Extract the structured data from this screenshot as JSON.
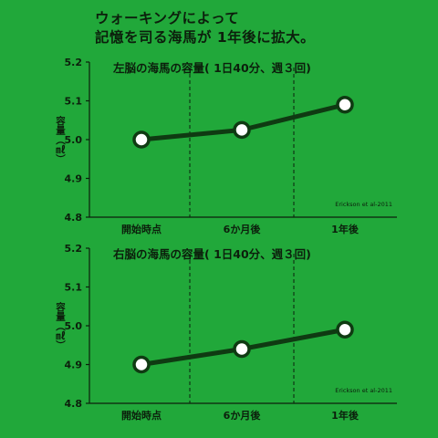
{
  "headline": {
    "line1": "ウォーキングによって",
    "line2": "記憶を司る海馬が 1年後に拡大。"
  },
  "colors": {
    "background": "#21a83a",
    "ink": "#0c1f0c",
    "line": "#0f3a12",
    "marker_fill": "#ffffff"
  },
  "chart_data": [
    {
      "type": "line",
      "title": "左脳の海馬の容量( 1日40分、週３回)",
      "ylabel": "容量（㎖）",
      "categories": [
        "開始時点",
        "6か月後",
        "1年後"
      ],
      "values": [
        5.0,
        5.025,
        5.09
      ],
      "ylim": [
        4.8,
        5.2
      ],
      "yticks": [
        "5.2",
        "5.1",
        "5.0",
        "4.9",
        "4.8"
      ],
      "annotation": "Erickson et al-2011",
      "grid": "dashed vertical separators"
    },
    {
      "type": "line",
      "title": "右脳の海馬の容量( 1日40分、週３回)",
      "ylabel": "容量（㎖）",
      "categories": [
        "開始時点",
        "6か月後",
        "1年後"
      ],
      "values": [
        4.9,
        4.94,
        4.99
      ],
      "ylim": [
        4.8,
        5.2
      ],
      "yticks": [
        "5.2",
        "5.1",
        "5.0",
        "4.9",
        "4.8"
      ],
      "annotation": "Erickson et al-2011",
      "grid": "dashed vertical separators"
    }
  ]
}
